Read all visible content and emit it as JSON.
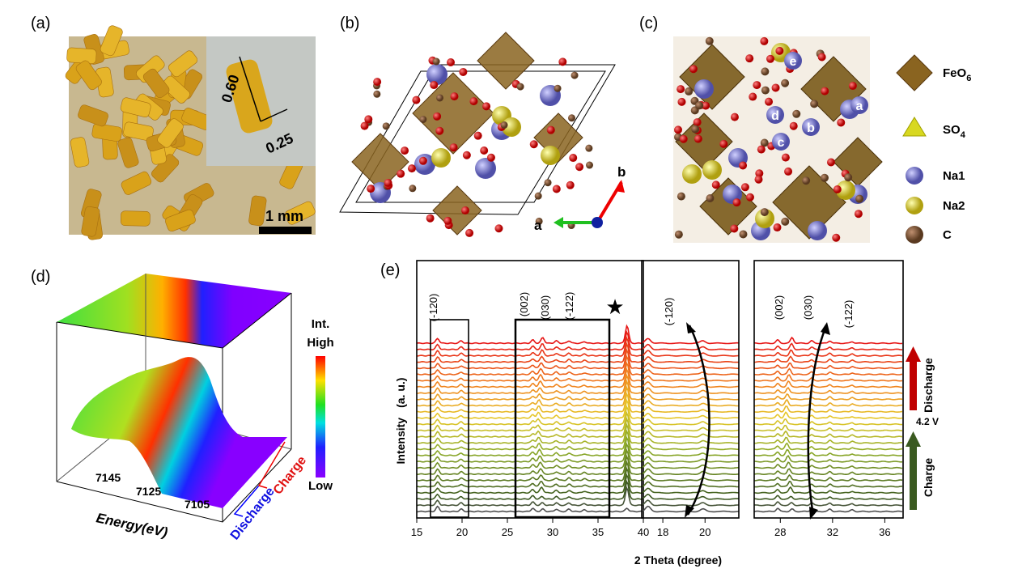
{
  "panels": {
    "a": {
      "label": "(a)",
      "length": "0.60",
      "width": "0.25",
      "scale_bar": "1 mm"
    },
    "b": {
      "label": "(b)",
      "axis_b": "b",
      "axis_a": "a"
    },
    "c": {
      "label": "(c)",
      "sites": [
        "e",
        "a",
        "d",
        "b",
        "c"
      ],
      "legend": [
        {
          "text": "FeO",
          "sub": "6"
        },
        {
          "text": "SO",
          "sub": "4"
        },
        {
          "text": "Na1"
        },
        {
          "text": "Na2"
        },
        {
          "text": "C"
        }
      ]
    },
    "d": {
      "label": "(d)",
      "colorbar_title": "Int.",
      "high": "High",
      "low": "Low",
      "energy_ticks": [
        "7145",
        "7125",
        "7105"
      ],
      "energy_label": "Energy(eV)",
      "discharge": "Discharge",
      "charge": "Charge"
    },
    "e": {
      "label": "(e)",
      "y_label": "Intensity",
      "y_unit": "(a. u.)",
      "x_label": "2 Theta (degree)",
      "star": "★",
      "frames": [
        {
          "peaks": [
            "(-120)",
            "(002)",
            "(030)",
            "(-122)"
          ],
          "xticks": [
            15,
            20,
            25,
            30,
            35,
            40
          ],
          "xlim": [
            15,
            40
          ]
        },
        {
          "peaks": [
            "(-120)"
          ],
          "xticks": [
            18,
            20
          ],
          "xlim": [
            17,
            21.6
          ]
        },
        {
          "peaks": [
            "(002)",
            "(030)",
            "(-122)"
          ],
          "xticks": [
            28,
            32,
            36
          ],
          "xlim": [
            26,
            37.4
          ]
        }
      ],
      "discharge": "Discharge",
      "voltage": "4.2 V",
      "charge": "Charge"
    }
  }
}
